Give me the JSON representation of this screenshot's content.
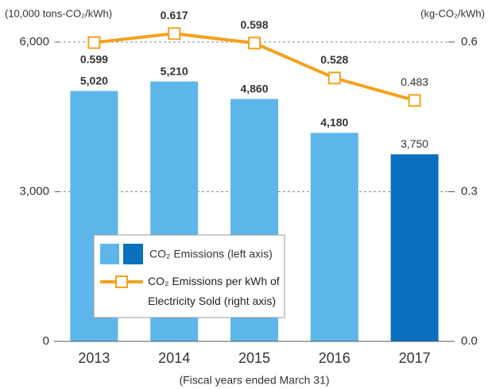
{
  "chart_data": {
    "type": "bar-line",
    "ylabel": "(10,000 tons-CO₂/kWh)",
    "y2label": "(kg-CO₂/kWh)",
    "xlabel": "(Fiscal years ended March 31)",
    "categories": [
      "2013",
      "2014",
      "2015",
      "2016",
      "2017"
    ],
    "series": [
      {
        "name": "CO₂ Emissions (left axis)",
        "type": "bar",
        "colors": [
          "#5cb6ea",
          "#5cb6ea",
          "#5cb6ea",
          "#5cb6ea",
          "#0a6fbd"
        ],
        "label_colors": [
          "#1a1a1a",
          "#1a1a1a",
          "#1a1a1a",
          "#1a1a1a",
          "#1f7fc4"
        ],
        "values": [
          5020,
          5210,
          4860,
          4180,
          3750
        ],
        "value_labels": [
          "5,020",
          "5,210",
          "4,860",
          "4,180",
          "3,750"
        ]
      },
      {
        "name": "CO₂ Emissions per kWh of Electricity Sold (right axis)",
        "type": "line",
        "axis": "y2",
        "color": "#f4a11d",
        "label_colors": [
          "#5a3412",
          "#5a3412",
          "#5a3412",
          "#5a3412",
          "#e8562a"
        ],
        "values": [
          0.599,
          0.617,
          0.598,
          0.528,
          0.483
        ]
      }
    ],
    "ylim": [
      0,
      6000
    ],
    "yticks": [
      {
        "value": 0,
        "label": "0"
      },
      {
        "value": 3000,
        "label": "3,000"
      },
      {
        "value": 6000,
        "label": "6,000"
      }
    ],
    "y2lim": [
      0,
      0.6
    ],
    "y2ticks": [
      {
        "value": 0,
        "label": "0.0"
      },
      0.3,
      0.6
    ],
    "grid": true
  }
}
